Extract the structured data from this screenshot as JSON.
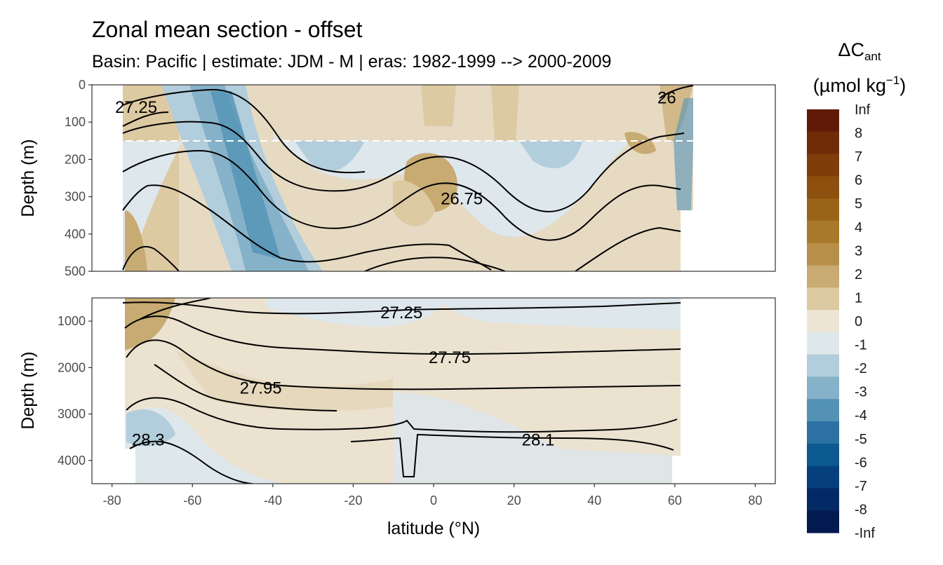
{
  "chart_data": {
    "type": "contour",
    "title": "Zonal mean section - offset",
    "subtitle": "Basin: Pacific | estimate: JDM - M | eras: 1982-1999 --> 2000-2009",
    "xlabel": "latitude (°N)",
    "ylabel": "Depth (m)",
    "xlim": [
      -85,
      85
    ],
    "x_ticks": [
      -80,
      -60,
      -40,
      -20,
      0,
      20,
      40,
      60,
      80
    ],
    "x_tick_labels": [
      "-80",
      "-60",
      "-40",
      "-20",
      "0",
      "20",
      "40",
      "60",
      "80"
    ],
    "panels": [
      {
        "name": "upper",
        "ylim": [
          0,
          500
        ],
        "y_ticks": [
          0,
          100,
          200,
          300,
          400,
          500
        ],
        "y_tick_labels": [
          "0",
          "100",
          "200",
          "300",
          "400",
          "500"
        ],
        "reference_depth_dashed": 150,
        "isoline_labels": [
          {
            "text": "27.25",
            "lat": -74,
            "depth": 60
          },
          {
            "text": "26",
            "lat": 58,
            "depth": 35
          },
          {
            "text": "26.75",
            "lat": 7,
            "depth": 305
          }
        ]
      },
      {
        "name": "lower",
        "ylim": [
          500,
          4500
        ],
        "y_ticks": [
          1000,
          2000,
          3000,
          4000
        ],
        "y_tick_labels": [
          "1000",
          "2000",
          "3000",
          "4000"
        ],
        "isoline_labels": [
          {
            "text": "27.25",
            "lat": -8,
            "depth": 820
          },
          {
            "text": "27.75",
            "lat": 4,
            "depth": 1780
          },
          {
            "text": "27.95",
            "lat": -43,
            "depth": 2440
          },
          {
            "text": "28.3",
            "lat": -71,
            "depth": 3560
          },
          {
            "text": "28.1",
            "lat": 26,
            "depth": 3560
          }
        ]
      }
    ],
    "legend": {
      "title_main": "ΔC",
      "title_sub": "ant",
      "unit_main": "(µmol kg",
      "unit_sup": "−1",
      "unit_end": ")",
      "labels": [
        "Inf",
        "8",
        "7",
        "6",
        "5",
        "4",
        "3",
        "2",
        "1",
        "0",
        "-1",
        "-2",
        "-3",
        "-4",
        "-5",
        "-6",
        "-7",
        "-8",
        "-Inf"
      ],
      "colors": [
        "#5f1a08",
        "#6e2c08",
        "#7e3d0b",
        "#8c4f0d",
        "#9a6418",
        "#a8792a",
        "#b78f48",
        "#c8ab72",
        "#ddc9a2",
        "#ede4d4",
        "#dde7ec",
        "#b2cddb",
        "#85b2c9",
        "#5392b5",
        "#2b72a2",
        "#0c5891",
        "#063f7d",
        "#042a66",
        "#021a4f"
      ]
    }
  }
}
